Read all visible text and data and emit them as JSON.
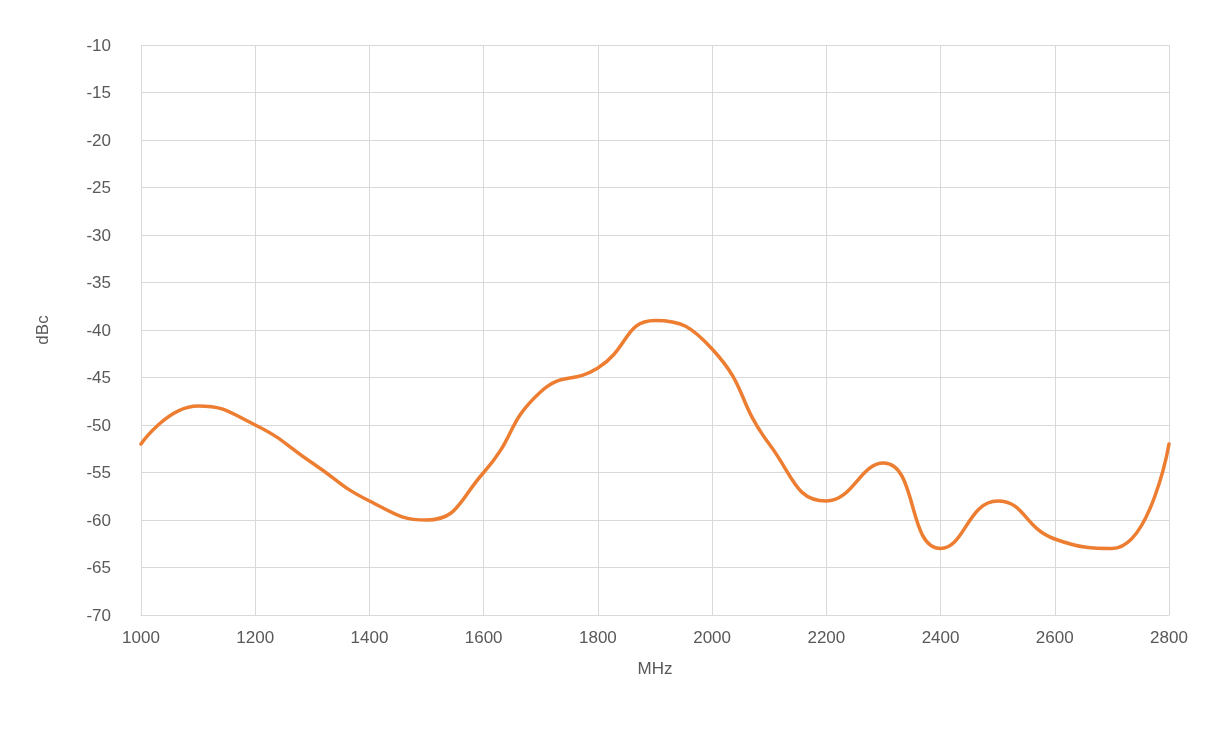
{
  "chart_data": {
    "type": "line",
    "xlabel": "MHz",
    "ylabel": "dBc",
    "x": [
      1000,
      1100,
      1200,
      1300,
      1400,
      1500,
      1600,
      1700,
      1800,
      1900,
      2000,
      2100,
      2200,
      2300,
      2400,
      2500,
      2600,
      2700,
      2800
    ],
    "series": [
      {
        "color": "#ed7d31",
        "values": [
          -52,
          -48,
          -50,
          -54,
          -58,
          -60,
          -55,
          -46.5,
          -44,
          -39,
          -42,
          -52,
          -58,
          -54,
          -63,
          -58,
          -62,
          -63,
          -52
        ]
      }
    ],
    "xlim": [
      1000,
      2800
    ],
    "xticks": [
      1000,
      1200,
      1400,
      1600,
      1800,
      2000,
      2200,
      2400,
      2600,
      2800
    ],
    "ylim": [
      -70,
      -10
    ],
    "yticks": [
      -70,
      -65,
      -60,
      -55,
      -50,
      -45,
      -40,
      -35,
      -30,
      -25,
      -20,
      -15,
      -10
    ],
    "grid": true,
    "marker": "none",
    "line_style": "solid"
  }
}
